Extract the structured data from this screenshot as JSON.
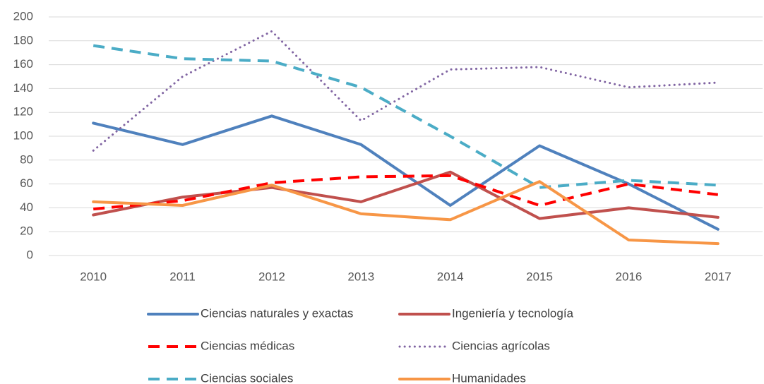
{
  "chart_data": {
    "type": "line",
    "categories": [
      "2010",
      "2011",
      "2012",
      "2013",
      "2014",
      "2015",
      "2016",
      "2017"
    ],
    "series": [
      {
        "name": "Ciencias naturales y exactas",
        "color": "#4f81bd",
        "line_style": "solid",
        "values": [
          111,
          93,
          117,
          93,
          42,
          92,
          60,
          22
        ]
      },
      {
        "name": "Ingeniería y tecnología",
        "color": "#c0504d",
        "line_style": "solid",
        "values": [
          34,
          49,
          57,
          45,
          70,
          31,
          40,
          32
        ]
      },
      {
        "name": "Ciencias médicas",
        "color": "#ff0000",
        "line_style": "dashed",
        "values": [
          39,
          46,
          61,
          66,
          67,
          42,
          60,
          51
        ]
      },
      {
        "name": "Ciencias agrícolas",
        "color": "#8064a2",
        "line_style": "dotted",
        "values": [
          88,
          150,
          188,
          113,
          156,
          158,
          141,
          145
        ]
      },
      {
        "name": "Ciencias sociales",
        "color": "#4bacc6",
        "line_style": "dashed",
        "values": [
          176,
          165,
          163,
          141,
          100,
          57,
          63,
          59
        ]
      },
      {
        "name": "Humanidades",
        "color": "#f79646",
        "line_style": "solid",
        "values": [
          45,
          42,
          59,
          35,
          30,
          62,
          13,
          10
        ]
      }
    ],
    "ylim": [
      0,
      200
    ],
    "yticks": [
      0,
      20,
      40,
      60,
      80,
      100,
      120,
      140,
      160,
      180,
      200
    ],
    "grid": true,
    "legend": "bottom"
  }
}
